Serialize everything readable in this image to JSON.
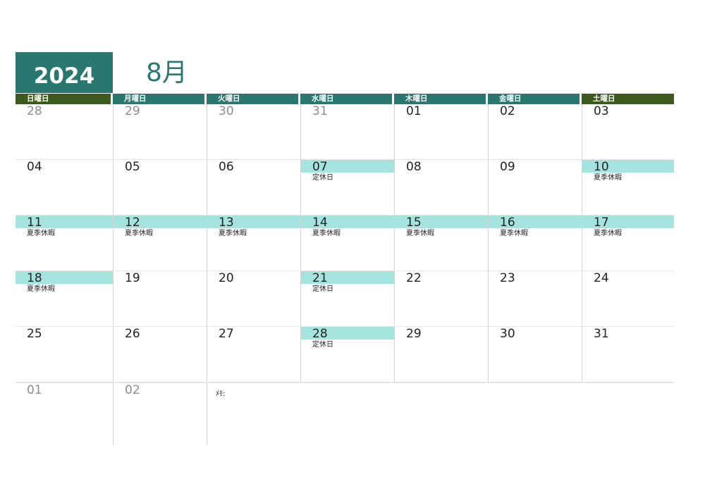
{
  "header": {
    "year": "2024",
    "month": "8月"
  },
  "colors": {
    "teal": "#2a7770",
    "olive": "#3d5a1e",
    "highlight": "#a5e3df"
  },
  "weekdays": [
    {
      "label": "日曜日",
      "color": "#3d5a1e"
    },
    {
      "label": "月曜日",
      "color": "#2a7770"
    },
    {
      "label": "火曜日",
      "color": "#2a7770"
    },
    {
      "label": "水曜日",
      "color": "#2a7770"
    },
    {
      "label": "木曜日",
      "color": "#2a7770"
    },
    {
      "label": "金曜日",
      "color": "#2a7770"
    },
    {
      "label": "土曜日",
      "color": "#3d5a1e"
    }
  ],
  "weeks": [
    [
      {
        "day": "28",
        "other": true
      },
      {
        "day": "29",
        "other": true
      },
      {
        "day": "30",
        "other": true
      },
      {
        "day": "31",
        "other": true
      },
      {
        "day": "01"
      },
      {
        "day": "02"
      },
      {
        "day": "03"
      }
    ],
    [
      {
        "day": "04"
      },
      {
        "day": "05"
      },
      {
        "day": "06"
      },
      {
        "day": "07",
        "highlight": true,
        "note": "定休日"
      },
      {
        "day": "08"
      },
      {
        "day": "09"
      },
      {
        "day": "10",
        "highlight": true,
        "note": "夏季休暇"
      }
    ],
    [
      {
        "day": "11",
        "highlight": true,
        "note": "夏季休暇"
      },
      {
        "day": "12",
        "highlight": true,
        "note": "夏季休暇"
      },
      {
        "day": "13",
        "highlight": true,
        "note": "夏季休暇"
      },
      {
        "day": "14",
        "highlight": true,
        "note": "夏季休暇"
      },
      {
        "day": "15",
        "highlight": true,
        "note": "夏季休暇"
      },
      {
        "day": "16",
        "highlight": true,
        "note": "夏季休暇"
      },
      {
        "day": "17",
        "highlight": true,
        "note": "夏季休暇"
      }
    ],
    [
      {
        "day": "18",
        "highlight": true,
        "note": "夏季休暇"
      },
      {
        "day": "19"
      },
      {
        "day": "20"
      },
      {
        "day": "21",
        "highlight": true,
        "note": "定休日"
      },
      {
        "day": "22"
      },
      {
        "day": "23"
      },
      {
        "day": "24"
      }
    ],
    [
      {
        "day": "25"
      },
      {
        "day": "26"
      },
      {
        "day": "27"
      },
      {
        "day": "28",
        "highlight": true,
        "note": "定休日"
      },
      {
        "day": "29"
      },
      {
        "day": "30"
      },
      {
        "day": "31"
      }
    ]
  ],
  "last_row": [
    {
      "day": "01",
      "other": true
    },
    {
      "day": "02",
      "other": true
    }
  ],
  "memo_label": "ﾒﾓ:"
}
